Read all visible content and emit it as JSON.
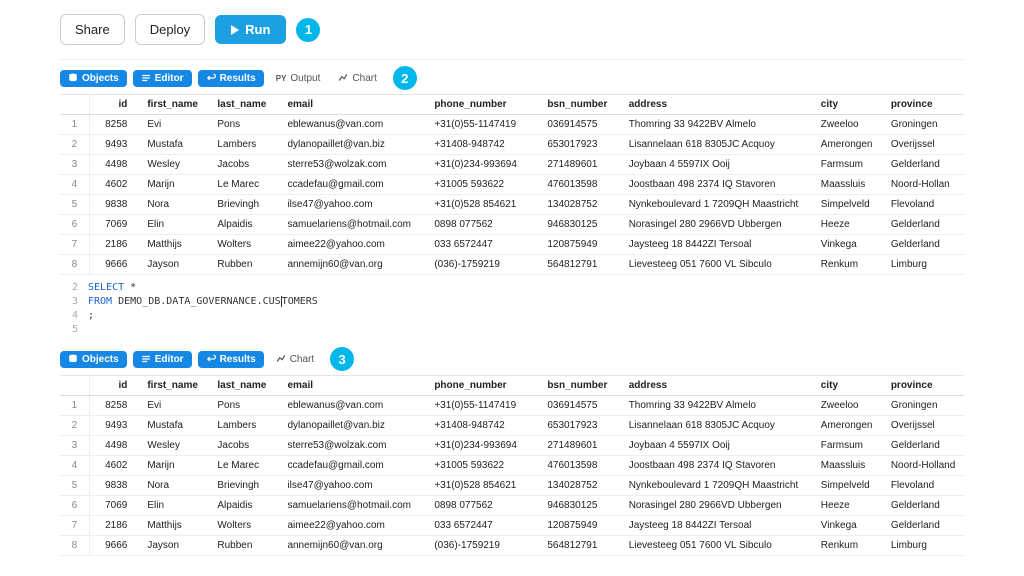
{
  "top": {
    "share": "Share",
    "deploy": "Deploy",
    "run": "Run",
    "step1": "1"
  },
  "toolbarA": {
    "objects": "Objects",
    "editor": "Editor",
    "results": "Results",
    "output": "Output",
    "chart": "Chart",
    "step": "2"
  },
  "toolbarB": {
    "objects": "Objects",
    "editor": "Editor",
    "results": "Results",
    "chart": "Chart",
    "step": "3"
  },
  "table": {
    "headers": {
      "id": "id",
      "first_name": "first_name",
      "last_name": "last_name",
      "email": "email",
      "phone": "phone_number",
      "bsn": "bsn_number",
      "address": "address",
      "city": "city",
      "province": "province"
    },
    "rows": [
      {
        "n": "1",
        "id": "8258",
        "fn": "Evi",
        "ln": "Pons",
        "em": "eblewanus@van.com",
        "ph": "+31(0)55-1147419",
        "bsn": "036914575",
        "addr": "Thomring 33 9422BV Almelo",
        "city": "Zweeloo",
        "prov": "Groningen"
      },
      {
        "n": "2",
        "id": "9493",
        "fn": "Mustafa",
        "ln": "Lambers",
        "em": "dylanopaillet@van.biz",
        "ph": "+31408-948742",
        "bsn": "653017923",
        "addr": "Lisannelaan 618 8305JC Acquoy",
        "city": "Amerongen",
        "prov": "Overijssel"
      },
      {
        "n": "3",
        "id": "4498",
        "fn": "Wesley",
        "ln": "Jacobs",
        "em": "sterre53@wolzak.com",
        "ph": "+31(0)234-993694",
        "bsn": "271489601",
        "addr": "Joybaan 4 5597IX Ooij",
        "city": "Farmsum",
        "prov": "Gelderland"
      },
      {
        "n": "4",
        "id": "4602",
        "fn": "Marijn",
        "ln": "Le Marec",
        "em": "ccadefau@gmail.com",
        "ph": "+31005 593622",
        "bsn": "476013598",
        "addr": "Joostbaan 498 2374 IQ Stavoren",
        "city": "Maassluis",
        "prov": "Noord-Hollan"
      },
      {
        "n": "5",
        "id": "9838",
        "fn": "Nora",
        "ln": "Brievingh",
        "em": "ilse47@yahoo.com",
        "ph": "+31(0)528 854621",
        "bsn": "134028752",
        "addr": "Nynkeboulevard 1 7209QH Maastricht",
        "city": "Simpelveld",
        "prov": "Flevoland"
      },
      {
        "n": "6",
        "id": "7069",
        "fn": "Elin",
        "ln": "Alpaidis",
        "em": "samuelariens@hotmail.com",
        "ph": "0898 077562",
        "bsn": "946830125",
        "addr": "Norasingel 280 2966VD Ubbergen",
        "city": "Heeze",
        "prov": "Gelderland"
      },
      {
        "n": "7",
        "id": "2186",
        "fn": "Matthijs",
        "ln": "Wolters",
        "em": "aimee22@yahoo.com",
        "ph": "033 6572447",
        "bsn": "120875949",
        "addr": "Jaysteeg 18 8442ZI Tersoal",
        "city": "Vinkega",
        "prov": "Gelderland"
      },
      {
        "n": "8",
        "id": "9666",
        "fn": "Jayson",
        "ln": "Rubben",
        "em": "annemijn60@van.org",
        "ph": "(036)-1759219",
        "bsn": "564812791",
        "addr": "Lievesteeg 051 7600 VL Sibculo",
        "city": "Renkum",
        "prov": "Limburg"
      }
    ]
  },
  "tableB4prov": "Noord-Holland",
  "sql": {
    "l2n": "2",
    "l2a": "SELECT ",
    "l2b": "*",
    "l3n": "3",
    "l3a": "FROM   ",
    "l3b": "DEMO_DB.DATA_GOVERNANCE.CUS",
    "l3c": "TOMERS",
    "l4n": "4",
    "l4a": ";",
    "l5n": "5"
  }
}
